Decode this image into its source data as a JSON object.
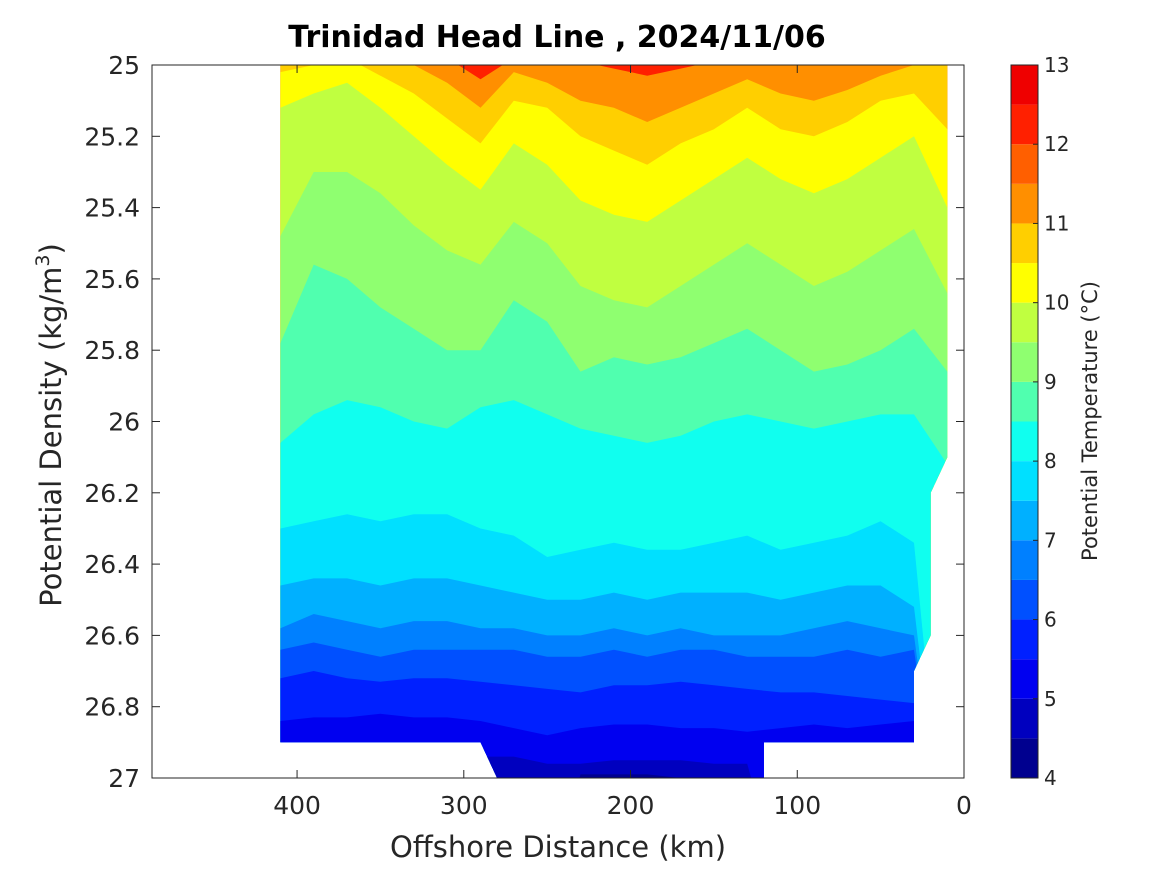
{
  "chart_data": {
    "type": "heatmap",
    "subtype": "filled-contour",
    "title": "Trinidad Head Line , 2024/11/06",
    "xlabel": "Offshore Distance (km)",
    "ylabel_main": "Potential Density (kg/m",
    "ylabel_sup": "3",
    "ylabel_close": ")",
    "xlim": [
      487,
      0
    ],
    "x_reversed": true,
    "ylim": [
      25,
      27
    ],
    "y_reversed": true,
    "x_ticks": [
      400,
      300,
      200,
      100,
      0
    ],
    "x_tick_labels": [
      "400",
      "300",
      "200",
      "100",
      "0"
    ],
    "y_ticks": [
      25,
      25.2,
      25.4,
      25.6,
      25.8,
      26,
      26.2,
      26.4,
      26.6,
      26.8,
      27
    ],
    "y_tick_labels": [
      "25",
      "25.2",
      "25.4",
      "25.6",
      "25.8",
      "26",
      "26.2",
      "26.4",
      "26.6",
      "26.8",
      "27"
    ],
    "colorbar": {
      "label": "Potential Temperature (°C)",
      "min": 4,
      "max": 13,
      "ticks": [
        4,
        5,
        6,
        7,
        8,
        9,
        10,
        11,
        12,
        13
      ],
      "tick_labels": [
        "4",
        "5",
        "6",
        "7",
        "8",
        "9",
        "10",
        "11",
        "12",
        "13"
      ],
      "levels": [
        4,
        4.5,
        5,
        5.5,
        6,
        6.5,
        7,
        7.5,
        8,
        8.5,
        9,
        9.5,
        10,
        10.5,
        11,
        11.5,
        12,
        12.5,
        13
      ],
      "colors": [
        "#00008f",
        "#0000bf",
        "#0000f0",
        "#0020ff",
        "#0050ff",
        "#0080ff",
        "#00b0ff",
        "#00e0ff",
        "#10ffef",
        "#50ffaf",
        "#8fff70",
        "#c0ff40",
        "#ffff00",
        "#ffcf00",
        "#ff8f00",
        "#ff5f00",
        "#ff2000",
        "#ef0000",
        "#af0000"
      ]
    },
    "data_extent_x": [
      410,
      10
    ],
    "boundary_isotherms": {
      "x": [
        410,
        390,
        370,
        350,
        330,
        310,
        290,
        270,
        250,
        230,
        210,
        190,
        170,
        150,
        130,
        110,
        90,
        70,
        50,
        30,
        10
      ],
      "curves": [
        {
          "temp": 11.5,
          "y": [
            null,
            null,
            null,
            null,
            null,
            24.98,
            25.04,
            24.98,
            24.96,
            24.99,
            25.01,
            25.03,
            25.01,
            24.99,
            24.97,
            24.99,
            25.0,
            24.98,
            24.97,
            null,
            null
          ]
        },
        {
          "temp": 11.0,
          "y": [
            null,
            null,
            null,
            24.98,
            25.0,
            25.05,
            25.12,
            25.02,
            25.05,
            25.1,
            25.12,
            25.16,
            25.12,
            25.08,
            25.04,
            25.08,
            25.1,
            25.07,
            25.03,
            25.0,
            null
          ]
        },
        {
          "temp": 10.5,
          "y": [
            25.02,
            25.0,
            24.98,
            25.03,
            25.08,
            25.15,
            25.22,
            25.1,
            25.12,
            25.2,
            25.24,
            25.28,
            25.22,
            25.18,
            25.12,
            25.18,
            25.2,
            25.16,
            25.1,
            25.08,
            25.18
          ]
        },
        {
          "temp": 10.0,
          "y": [
            25.12,
            25.08,
            25.05,
            25.12,
            25.2,
            25.28,
            25.35,
            25.22,
            25.28,
            25.38,
            25.42,
            25.44,
            25.38,
            25.32,
            25.26,
            25.32,
            25.36,
            25.32,
            25.26,
            25.2,
            25.4
          ]
        },
        {
          "temp": 9.5,
          "y": [
            25.48,
            25.3,
            25.3,
            25.36,
            25.45,
            25.52,
            25.56,
            25.44,
            25.5,
            25.62,
            25.66,
            25.68,
            25.62,
            25.56,
            25.5,
            25.56,
            25.62,
            25.58,
            25.52,
            25.46,
            25.64
          ]
        },
        {
          "temp": 9.0,
          "y": [
            25.78,
            25.56,
            25.6,
            25.68,
            25.74,
            25.8,
            25.8,
            25.66,
            25.72,
            25.86,
            25.82,
            25.84,
            25.82,
            25.78,
            25.74,
            25.8,
            25.86,
            25.84,
            25.8,
            25.74,
            25.86
          ]
        },
        {
          "temp": 8.5,
          "y": [
            26.06,
            25.98,
            25.94,
            25.96,
            26.0,
            26.02,
            25.96,
            25.94,
            25.98,
            26.02,
            26.04,
            26.06,
            26.04,
            26.0,
            25.98,
            26.0,
            26.02,
            26.0,
            25.98,
            25.98,
            26.12
          ]
        },
        {
          "temp": 8.0,
          "y": [
            26.3,
            26.28,
            26.26,
            26.28,
            26.26,
            26.26,
            26.3,
            26.32,
            26.38,
            26.36,
            26.34,
            26.36,
            26.36,
            26.34,
            26.32,
            26.36,
            26.34,
            26.32,
            26.28,
            26.34,
            null
          ]
        },
        {
          "temp": 7.5,
          "y": [
            26.46,
            26.44,
            26.44,
            26.46,
            26.44,
            26.44,
            26.46,
            26.48,
            26.5,
            26.5,
            26.48,
            26.5,
            26.48,
            26.48,
            26.48,
            26.5,
            26.48,
            26.46,
            26.46,
            26.52,
            null
          ]
        },
        {
          "temp": 7.0,
          "y": [
            26.58,
            26.54,
            26.56,
            26.58,
            26.56,
            26.56,
            26.58,
            26.58,
            26.6,
            26.6,
            26.58,
            26.6,
            26.58,
            26.6,
            26.6,
            26.6,
            26.58,
            26.56,
            26.58,
            26.6,
            null
          ]
        },
        {
          "temp": 6.5,
          "y": [
            26.64,
            26.62,
            26.64,
            26.66,
            26.64,
            26.64,
            26.64,
            26.64,
            26.66,
            26.66,
            26.64,
            26.66,
            26.64,
            26.64,
            26.66,
            26.66,
            26.66,
            26.64,
            26.66,
            26.64,
            null
          ]
        },
        {
          "temp": 6.0,
          "y": [
            26.72,
            26.7,
            26.72,
            26.73,
            26.72,
            26.72,
            26.73,
            26.74,
            26.75,
            26.76,
            26.74,
            26.74,
            26.73,
            26.74,
            26.75,
            26.76,
            26.76,
            26.77,
            26.78,
            26.79,
            null
          ]
        },
        {
          "temp": 5.5,
          "y": [
            26.84,
            26.83,
            26.83,
            26.82,
            26.83,
            26.83,
            26.84,
            26.86,
            26.88,
            26.86,
            26.85,
            26.85,
            26.86,
            26.86,
            26.87,
            26.86,
            26.85,
            26.86,
            26.85,
            26.84,
            null
          ]
        },
        {
          "temp": 5.0,
          "y": [
            null,
            null,
            null,
            null,
            null,
            null,
            26.94,
            26.94,
            26.96,
            26.96,
            26.95,
            26.95,
            26.95,
            26.96,
            26.96,
            null,
            null,
            null,
            null,
            null,
            null
          ]
        },
        {
          "temp": 4.5,
          "y": [
            null,
            null,
            null,
            null,
            null,
            null,
            null,
            null,
            null,
            26.99,
            26.99,
            26.99,
            27.0,
            null,
            null,
            null,
            null,
            null,
            null,
            null,
            null
          ]
        }
      ]
    },
    "grid": false,
    "colorbar_position": "right"
  }
}
